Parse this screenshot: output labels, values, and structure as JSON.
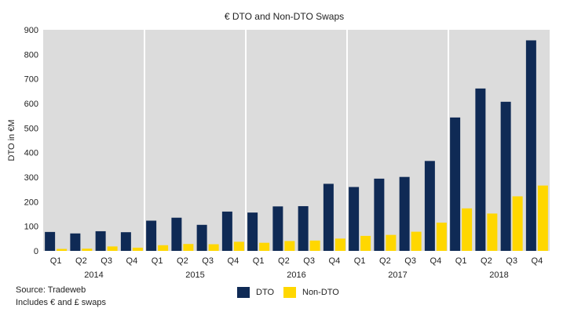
{
  "chart_data": {
    "type": "bar",
    "title": "€ DTO and Non-DTO Swaps",
    "ylabel": "DTO in €M",
    "xlabel": "",
    "ylim": [
      0,
      900
    ],
    "yticks": [
      "0",
      "100",
      "200",
      "300",
      "400",
      "500",
      "600",
      "700",
      "800",
      "900"
    ],
    "categories": [
      "Q1",
      "Q2",
      "Q3",
      "Q4",
      "Q1",
      "Q2",
      "Q3",
      "Q4",
      "Q1",
      "Q2",
      "Q3",
      "Q4",
      "Q1",
      "Q2",
      "Q3",
      "Q4",
      "Q1",
      "Q2",
      "Q3",
      "Q4"
    ],
    "year_groups": [
      "2014",
      "2015",
      "2016",
      "2017",
      "2018"
    ],
    "series": [
      {
        "name": "DTO",
        "color": "#0f2a55",
        "values": [
          77,
          71,
          80,
          76,
          123,
          135,
          106,
          160,
          156,
          181,
          182,
          273,
          260,
          294,
          301,
          366,
          543,
          661,
          607,
          857
        ]
      },
      {
        "name": "Non-DTO",
        "color": "#ffd700",
        "values": [
          8,
          9,
          18,
          13,
          23,
          28,
          27,
          37,
          33,
          40,
          42,
          50,
          61,
          65,
          78,
          115,
          173,
          152,
          222,
          266
        ]
      }
    ],
    "grid": "vertical separators between years",
    "legend": "bottom-center"
  },
  "notes": {
    "source": "Source: Tradeweb",
    "includes": "Includes € and £ swaps"
  }
}
